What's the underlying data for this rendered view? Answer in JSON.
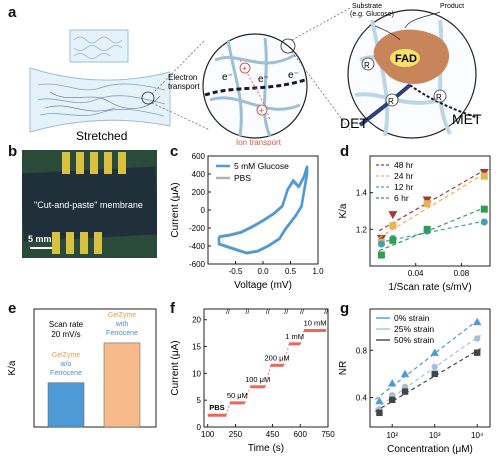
{
  "panels": {
    "a": "a",
    "b": "b",
    "c": "c",
    "d": "d",
    "e": "e",
    "f": "f",
    "g": "g"
  },
  "panel_a": {
    "stretched": "Stretched",
    "electron_transport": "Electron\ntransport",
    "ion_transport": "Ion transport",
    "substrate": "Substrate\n(e.g. Glucose)",
    "product": "Product",
    "fad": "FAD",
    "det": "DET",
    "met": "MET",
    "e_minus": "e⁻",
    "r": "R"
  },
  "panel_b": {
    "membrane": "\"Cut-and-paste\" membrane",
    "scale": "5 mm"
  },
  "colors": {
    "blue": "#4e9ad6",
    "gray": "#b8b0a8",
    "red": "#e8685a",
    "orange": "#f6b98a",
    "mem_blue": "#9cbfd6",
    "dark_blue": "#2b3f7a"
  },
  "chart_data": [
    {
      "type": "line",
      "panel": "c",
      "xlabel": "Voltage (mV)",
      "ylabel": "Current  (μA)",
      "xlim": [
        -1.0,
        1.0
      ],
      "ylim": [
        -600,
        600
      ],
      "xticks": [
        -0.5,
        0.0,
        0.5,
        1.0
      ],
      "xtick_labels": [
        "-0.5",
        "0.0",
        "0.5",
        "1.0"
      ],
      "yticks": [
        -600,
        -400,
        -200,
        0,
        200,
        400,
        600
      ],
      "series": [
        {
          "name": "5 mM Glucose",
          "color": "#4e9ad6",
          "x": [
            -0.8,
            -0.6,
            -0.4,
            -0.2,
            0.0,
            0.2,
            0.35,
            0.45,
            0.55,
            0.65,
            0.75,
            0.8,
            0.8,
            0.7,
            0.6,
            0.5,
            0.4,
            0.3,
            0.1,
            -0.1,
            -0.3,
            -0.5,
            -0.7,
            -0.8,
            -0.8
          ],
          "y": [
            -300,
            -280,
            -250,
            -190,
            -120,
            -40,
            40,
            230,
            330,
            260,
            380,
            480,
            400,
            40,
            -60,
            -140,
            -220,
            -320,
            -400,
            -460,
            -480,
            -440,
            -400,
            -380,
            -300
          ]
        },
        {
          "name": "PBS",
          "color": "#b8b0a8",
          "x": [
            -0.8,
            -0.6,
            -0.4,
            -0.2,
            0.0,
            0.2,
            0.35,
            0.45,
            0.55,
            0.65,
            0.75,
            0.8,
            0.8,
            0.7,
            0.6,
            0.5,
            0.4,
            0.3,
            0.1,
            -0.1,
            -0.3,
            -0.5,
            -0.7,
            -0.8,
            -0.8
          ],
          "y": [
            -290,
            -270,
            -240,
            -180,
            -110,
            -30,
            50,
            220,
            310,
            250,
            360,
            460,
            380,
            50,
            -50,
            -130,
            -210,
            -310,
            -390,
            -450,
            -470,
            -430,
            -390,
            -370,
            -290
          ]
        }
      ]
    },
    {
      "type": "scatter",
      "panel": "d",
      "xlabel": "1/Scan rate (s/mV)",
      "ylabel": "K/a",
      "xlim": [
        0.0,
        0.105
      ],
      "ylim": [
        1.0,
        1.6
      ],
      "xticks": [
        0.04,
        0.08
      ],
      "xtick_labels": [
        "0.04",
        "0.08"
      ],
      "yticks": [
        1.2,
        1.4
      ],
      "ytick_labels": [
        "1.2",
        "1.4"
      ],
      "series": [
        {
          "name": "48 hr",
          "color": "#a23a3a",
          "marker": "triangle-down",
          "x": [
            0.01,
            0.02,
            0.05,
            0.1
          ],
          "y": [
            1.15,
            1.28,
            1.36,
            1.51
          ]
        },
        {
          "name": "24 hr",
          "color": "#e6b455",
          "marker": "square",
          "x": [
            0.01,
            0.02,
            0.05,
            0.1
          ],
          "y": [
            1.13,
            1.22,
            1.34,
            1.49
          ]
        },
        {
          "name": "12 hr",
          "color": "#3fa0b8",
          "marker": "circle",
          "x": [
            0.01,
            0.02,
            0.05,
            0.1
          ],
          "y": [
            1.12,
            1.15,
            1.19,
            1.24
          ]
        },
        {
          "name": "6 hr",
          "color": "#2f9e55",
          "marker": "square",
          "x": [
            0.01,
            0.02,
            0.05,
            0.1
          ],
          "y": [
            1.06,
            1.14,
            1.2,
            1.31
          ]
        }
      ]
    },
    {
      "type": "bar",
      "panel": "e",
      "ylabel": "K/a",
      "ylim": [
        0.8,
        1.6
      ],
      "annotation": "Scan rate\n20 mV/s",
      "categories": [
        "GelZyme w/o Ferrocene",
        "GelZyme with Ferrocene"
      ],
      "values": [
        1.1,
        1.37
      ],
      "colors": [
        "#4e9ad6",
        "#f6b98a"
      ],
      "label_a": {
        "gelzyme": "GelZyme",
        "rest": "w/o\nFerrocene"
      },
      "label_b": {
        "gelzyme": "GelZyme",
        "rest": "with\nFerrocene"
      }
    },
    {
      "type": "line",
      "panel": "f",
      "xlabel": "Time (s)",
      "ylabel": "Current (μA)",
      "xlim": [
        80,
        750
      ],
      "ylim": [
        0,
        22
      ],
      "xticks": [
        100,
        250,
        450,
        600,
        750
      ],
      "yticks": [
        0,
        5,
        10,
        15,
        20
      ],
      "series": [
        {
          "name": "",
          "color": "#e8685a",
          "segments": [
            [
              100,
              200,
              2.2
            ],
            [
              220,
              300,
              4.5
            ],
            [
              330,
              410,
              7.5
            ],
            [
              440,
              510,
              11.5
            ],
            [
              540,
              600,
              15.5
            ],
            [
              620,
              740,
              18.0
            ]
          ]
        }
      ],
      "annotations": [
        "PBS",
        "50 μM",
        "100 μM",
        "200 μM",
        "1 mM",
        "10 mM"
      ]
    },
    {
      "type": "scatter",
      "panel": "g",
      "xlabel": "Concentration (μM)",
      "ylabel": "NR",
      "xscale": "log",
      "xlim": [
        30,
        20000
      ],
      "ylim": [
        0.15,
        1.15
      ],
      "xticks": [
        100,
        1000,
        10000
      ],
      "xtick_labels": [
        "10²",
        "10³",
        "10⁴"
      ],
      "yticks": [
        0.4,
        0.8
      ],
      "ytick_labels": [
        "0.4",
        "0.8"
      ],
      "series": [
        {
          "name": "0% strain",
          "color": "#4e9ad6",
          "marker": "triangle",
          "x": [
            50,
            100,
            200,
            1000,
            10000
          ],
          "y": [
            0.37,
            0.52,
            0.6,
            0.78,
            1.04
          ]
        },
        {
          "name": "25% strain",
          "color": "#a9bfd8",
          "marker": "circle",
          "x": [
            50,
            100,
            200,
            1000,
            10000
          ],
          "y": [
            0.3,
            0.42,
            0.49,
            0.66,
            0.9
          ]
        },
        {
          "name": "50% strain",
          "color": "#444444",
          "marker": "square",
          "x": [
            50,
            100,
            200,
            1000,
            10000
          ],
          "y": [
            0.27,
            0.38,
            0.45,
            0.6,
            0.78
          ]
        }
      ]
    }
  ]
}
